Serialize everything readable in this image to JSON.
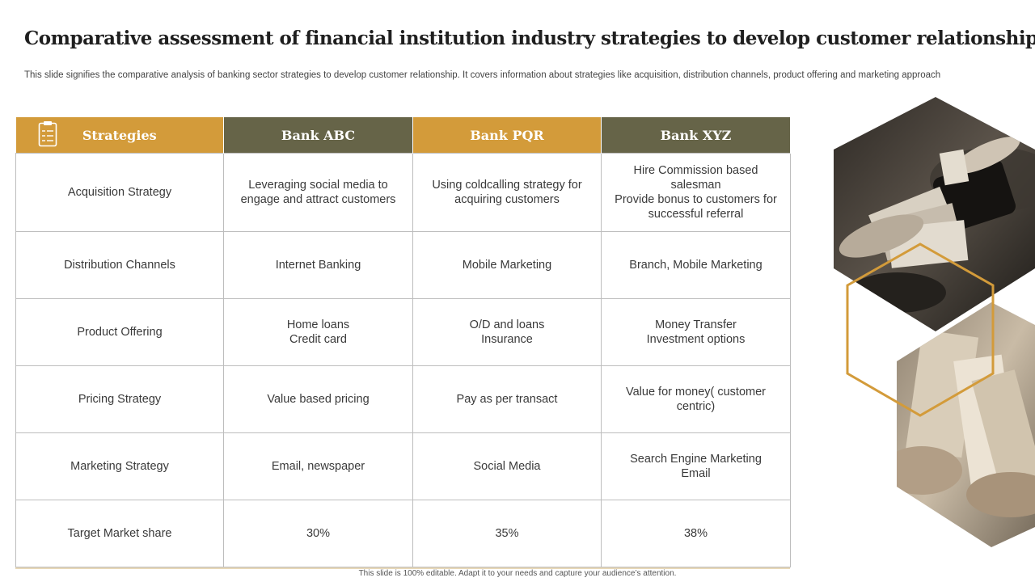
{
  "page": {
    "title": "Comparative assessment of financial institution industry strategies to develop customer relationship",
    "subtitle": "This slide signifies the comparative analysis of banking sector strategies to develop customer relationship. It covers information about strategies like acquisition, distribution channels, product offering and marketing approach",
    "footer": "This slide is 100% editable.  Adapt it to your needs and capture your audience’s attention."
  },
  "table": {
    "headers": [
      "Strategies",
      "Bank ABC",
      "Bank PQR",
      "Bank XYZ"
    ],
    "rows": [
      {
        "label": "Acquisition Strategy",
        "abc": [
          "Leveraging social media to",
          "engage and attract customers"
        ],
        "pqr": [
          "Using coldcalling strategy for",
          "acquiring customers"
        ],
        "xyz": [
          "Hire Commission based",
          "salesman",
          "Provide bonus to customers for",
          "successful referral"
        ]
      },
      {
        "label": "Distribution Channels",
        "abc": [
          "Internet Banking"
        ],
        "pqr": [
          "Mobile Marketing"
        ],
        "xyz": [
          "Branch, Mobile Marketing"
        ]
      },
      {
        "label": "Product Offering",
        "abc": [
          "Home loans",
          "Credit card"
        ],
        "pqr": [
          "O/D and loans",
          "Insurance"
        ],
        "xyz": [
          "Money Transfer",
          "Investment options"
        ]
      },
      {
        "label": "Pricing Strategy",
        "abc": [
          "Value based pricing"
        ],
        "pqr": [
          "Pay as per transact"
        ],
        "xyz": [
          "Value for money( customer",
          "centric)"
        ]
      },
      {
        "label": "Marketing Strategy",
        "abc": [
          "Email, newspaper"
        ],
        "pqr": [
          "Social Media"
        ],
        "xyz": [
          "Search Engine Marketing",
          "Email"
        ]
      },
      {
        "label": "Target Market share",
        "abc": [
          "30%"
        ],
        "pqr": [
          "35%"
        ],
        "xyz": [
          "38%"
        ]
      }
    ]
  },
  "icons": {
    "header_icon": "clipboard-icon",
    "photo_top": "money-exchange-photo",
    "photo_bottom": "cash-in-hands-photo"
  },
  "colors": {
    "gold": "#d39b3a",
    "olive": "#666448"
  }
}
